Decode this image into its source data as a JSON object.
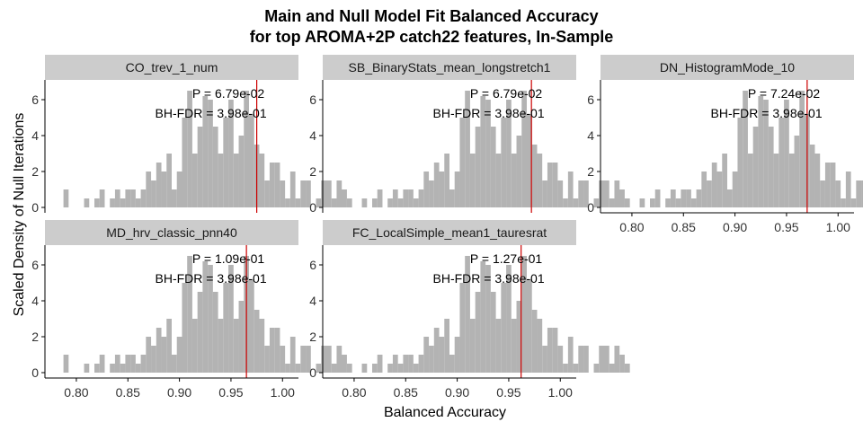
{
  "title_line1": "Main and Null Model Fit Balanced Accuracy",
  "title_line2": "for top AROMA+2P catch22 features, In-Sample",
  "xlabel": "Balanced Accuracy",
  "ylabel": "Scaled Density of Null Iterations",
  "colors": {
    "bar": "#b3b3b3",
    "strip": "#cccccc",
    "line": "#cc0000",
    "axis": "#000000"
  },
  "chart_data": {
    "type": "bar",
    "subtype": "faceted-histogram",
    "xlim": [
      0.78,
      1.005
    ],
    "ylim": [
      0,
      6.9
    ],
    "xticks": [
      "0.80",
      "0.85",
      "0.90",
      "0.95",
      "1.00"
    ],
    "xtick_values": [
      0.8,
      0.85,
      0.9,
      0.95,
      1.0
    ],
    "yticks": [
      "0",
      "2",
      "4",
      "6"
    ],
    "ytick_values": [
      0,
      2,
      4,
      6
    ],
    "bin_width": 0.005,
    "bin_start": 0.7875,
    "null_histogram": [
      1.0,
      0,
      0,
      0,
      0.5,
      0,
      0.5,
      1.0,
      0,
      0.5,
      1.0,
      0.5,
      1.0,
      1.0,
      0.5,
      1.0,
      2.0,
      1.5,
      2.5,
      2.0,
      3.0,
      1.0,
      2.0,
      5.0,
      6.5,
      3.0,
      4.5,
      6.2,
      6.0,
      4.5,
      3.0,
      5.0,
      6.0,
      3.0,
      4.0,
      6.5,
      5.2,
      3.5,
      3.0,
      1.5,
      2.5,
      2.5,
      1.5,
      0.5,
      2.0,
      0.5,
      1.5,
      1.5,
      0,
      0.5,
      1.5,
      1.5,
      0.5,
      1.5,
      1.0,
      0.5
    ],
    "panels": [
      {
        "name": "CO_trev_1_num",
        "observed": 0.975,
        "p_label": "P = 6.79e-02",
        "fdr_label": "BH-FDR = 3.98e-01"
      },
      {
        "name": "SB_BinaryStats_mean_longstretch1",
        "observed": 0.972,
        "p_label": "P = 6.79e-02",
        "fdr_label": "BH-FDR = 3.98e-01"
      },
      {
        "name": "DN_HistogramMode_10",
        "observed": 0.97,
        "p_label": "P = 7.24e-02",
        "fdr_label": "BH-FDR = 3.98e-01"
      },
      {
        "name": "MD_hrv_classic_pnn40",
        "observed": 0.965,
        "p_label": "P = 1.09e-01",
        "fdr_label": "BH-FDR = 3.98e-01"
      },
      {
        "name": "FC_LocalSimple_mean1_tauresrat",
        "observed": 0.962,
        "p_label": "P = 1.27e-01",
        "fdr_label": "BH-FDR = 3.98e-01"
      }
    ]
  }
}
